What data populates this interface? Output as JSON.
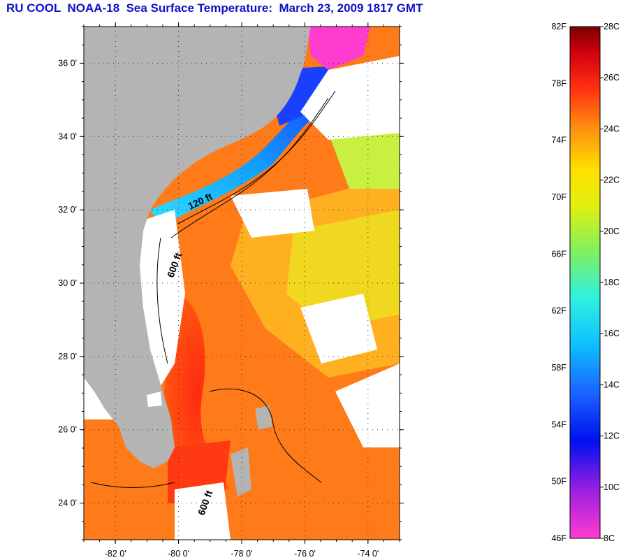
{
  "title": "RU COOL  NOAA-18  Sea Surface Temperature:  March 23, 2009 1817 GMT",
  "map": {
    "lat_ticks": [
      {
        "value": 36,
        "label": "36 0'"
      },
      {
        "value": 34,
        "label": "34 0'"
      },
      {
        "value": 32,
        "label": "32 0'"
      },
      {
        "value": 30,
        "label": "30 0'"
      },
      {
        "value": 28,
        "label": "28 0'"
      },
      {
        "value": 26,
        "label": "26 0'"
      },
      {
        "value": 24,
        "label": "24 0'"
      }
    ],
    "lon_ticks": [
      {
        "value": -82,
        "label": "-82 0'"
      },
      {
        "value": -80,
        "label": "-80 0'"
      },
      {
        "value": -78,
        "label": "-78 0'"
      },
      {
        "value": -76,
        "label": "-76 0'"
      },
      {
        "value": -74,
        "label": "-74 0'"
      }
    ],
    "lat_range": [
      23,
      37
    ],
    "lon_range": [
      -83,
      -73
    ],
    "contour_labels": [
      "120 ft",
      "600 ft",
      "600 ft"
    ],
    "colors": {
      "land": "#b4b4b4",
      "cloud": "#ffffff",
      "warm": "#ff5a10",
      "gulf_stream": "#ff2a10",
      "yellow": "#f0f000",
      "cold_blue": "#1a40ff",
      "cyan": "#30e0ff",
      "magenta": "#ff3cd0"
    }
  },
  "colorbar": {
    "fahrenheit_labels": [
      "82F",
      "78F",
      "74F",
      "70F",
      "66F",
      "62F",
      "58F",
      "54F",
      "50F",
      "46F"
    ],
    "celsius_labels": [
      "28C",
      "26C",
      "24C",
      "22C",
      "20C",
      "18C",
      "16C",
      "14C",
      "12C",
      "10C",
      "8C"
    ],
    "range_c": [
      8,
      28
    ],
    "range_f": [
      46,
      82
    ]
  }
}
